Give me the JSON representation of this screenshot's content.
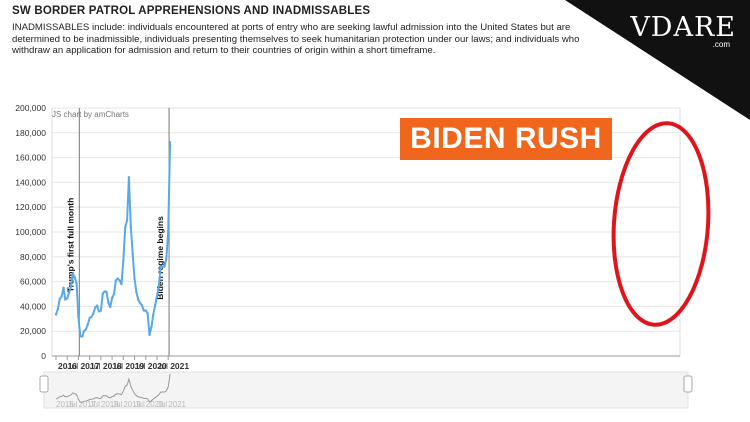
{
  "header": {
    "title": "SW BORDER PATROL APPREHENSIONS AND INADMISSABLES",
    "description": "INADMISSABLES include: individuals encountered at ports of entry who are seeking lawful admission into the United States but are determined to be inadmissible, individuals presenting themselves to seek humanitarian protection under our laws; and individuals who withdraw an application for admission and return to their countries of origin within a short timeframe."
  },
  "logo": {
    "text": "VDARE",
    "sub": ".com"
  },
  "badge": {
    "text": "BIDEN RUSH",
    "color": "#f0661c"
  },
  "credit": "JS chart by amCharts",
  "colors": {
    "line": "#5aa9e6",
    "ellipse": "#e0151b",
    "scroll": "#999999"
  },
  "chart_data": {
    "type": "line",
    "title": "",
    "xlabel": "",
    "ylabel": "",
    "ylim": [
      0,
      200000
    ],
    "yticks": [
      0,
      20000,
      40000,
      60000,
      80000,
      100000,
      120000,
      140000,
      160000,
      180000,
      200000
    ],
    "ytick_labels": [
      "0",
      "20,000",
      "40,000",
      "60,000",
      "80,000",
      "100,000",
      "120,000",
      "140,000",
      "160,000",
      "180,000",
      "200,000"
    ],
    "xtick_labels": [
      {
        "label": "2016",
        "month": 0
      },
      {
        "label": "Jul",
        "month": 6
      },
      {
        "label": "2017",
        "month": 12
      },
      {
        "label": "Jul",
        "month": 18
      },
      {
        "label": "2018",
        "month": 24
      },
      {
        "label": "Jul",
        "month": 30
      },
      {
        "label": "2019",
        "month": 36
      },
      {
        "label": "Jul",
        "month": 42
      },
      {
        "label": "2020",
        "month": 48
      },
      {
        "label": "Jul",
        "month": 54
      },
      {
        "label": "2021",
        "month": 60
      }
    ],
    "x_start": "2016-01",
    "series": [
      {
        "values": [
          33500,
          38000,
          46000,
          48000,
          55000,
          45500,
          46500,
          51000,
          56000,
          66500,
          63500,
          58500,
          31500,
          15800,
          15800,
          19900,
          21500,
          25500,
          30800,
          31500,
          34400,
          39100,
          40600,
          36000,
          36700,
          50300,
          51900,
          51800,
          43000,
          39500,
          46700,
          50000,
          60800,
          62400,
          61000,
          58000,
          76500,
          103700,
          109500,
          144100,
          104300,
          82000,
          62600,
          51400,
          45200,
          42600,
          40700,
          36600,
          36600,
          34400,
          17100,
          23200,
          33000,
          40700,
          48400,
          57000,
          71900,
          72100,
          72100,
          78300,
          100400,
          172300
        ]
      }
    ],
    "events": [
      {
        "label": "Trump's first full month",
        "month": 13
      },
      {
        "label": "Biden regime begins",
        "month": 61
      }
    ],
    "grid": true
  }
}
